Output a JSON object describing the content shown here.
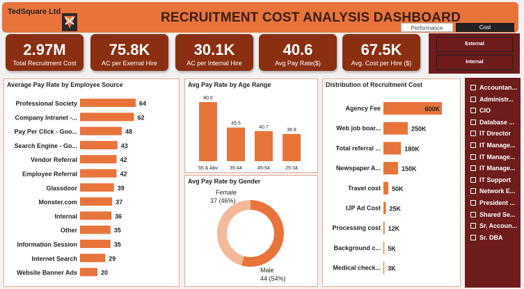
{
  "header": {
    "company": "TedSquare Ltd",
    "title": "RECRUITMENT COST ANALYSIS DASHBOARD",
    "tabs": [
      "Performance",
      "Cost"
    ]
  },
  "kpis": [
    {
      "value": "2.97M",
      "label": "Total Recruitment Cost"
    },
    {
      "value": "75.8K",
      "label": "AC per Exernal Hire"
    },
    {
      "value": "30.1K",
      "label": "AC per Internal Hire"
    },
    {
      "value": "40.6",
      "label": "Avg Pay Rate($)"
    },
    {
      "value": "67.5K",
      "label": "Avg. Cost per Hire ($)"
    }
  ],
  "side_buttons": [
    "External",
    "Internal"
  ],
  "slicer": {
    "items": [
      "Accountan...",
      "Administr...",
      "CIO",
      "Database ...",
      "IT Director",
      "IT Manage...",
      "IT Manage...",
      "IT Manage...",
      "IT Support",
      "Network E...",
      "President ...",
      "Shared Se...",
      "Sr. Accoun...",
      "Sr. DBA"
    ]
  },
  "colors": {
    "accent": "#e8743b",
    "dark": "#8b2f12",
    "panel": "#6e1c1c",
    "bar": "#e8743b",
    "female": "#f4b89a"
  },
  "chart_data": [
    {
      "type": "bar",
      "orientation": "horizontal",
      "title": "Average Pay Rate by Employee Source",
      "categories": [
        "Professional Society",
        "Company Intranet -...",
        "Pay Per Click - Goo...",
        "Search Engine - Go...",
        "Vendor Referral",
        "Employee Referral",
        "Glassdoor",
        "Monster.com",
        "Internal",
        "Other",
        "Information Session",
        "Internet Search",
        "Website Banner Ads"
      ],
      "values": [
        64,
        62,
        48,
        43,
        42,
        42,
        39,
        37,
        36,
        35,
        35,
        29,
        20
      ]
    },
    {
      "type": "bar",
      "orientation": "vertical",
      "title": "Avg Pay Rate by Age Range",
      "categories": [
        "55 & Abv",
        "35-44",
        "45-54",
        "25-34"
      ],
      "values": [
        80.0,
        45.5,
        40.7,
        36.9
      ],
      "labels": [
        "80.0",
        "45.5",
        "40.7",
        "36.9"
      ]
    },
    {
      "type": "pie",
      "title": "Avg Pay Rate by Gender",
      "slices": [
        {
          "name": "Female",
          "value": 37,
          "label": "37 (46%)"
        },
        {
          "name": "Male",
          "value": 44,
          "label": "44 (54%)"
        }
      ]
    },
    {
      "type": "bar",
      "orientation": "horizontal",
      "title": "Distribution of Recruitment Cost",
      "categories": [
        "Agency Fee",
        "Web job boar...",
        "Total referral ...",
        "Newspaper A...",
        "Travel cost",
        "IJP Ad Cost",
        "Processing cost",
        "Background c...",
        "Medical check..."
      ],
      "values": [
        600000,
        250000,
        180000,
        150000,
        50000,
        25000,
        12000,
        5000,
        3000
      ],
      "labels": [
        "600K",
        "250K",
        "180K",
        "150K",
        "50K",
        "25K",
        "12K",
        "5K",
        "3K"
      ]
    }
  ]
}
